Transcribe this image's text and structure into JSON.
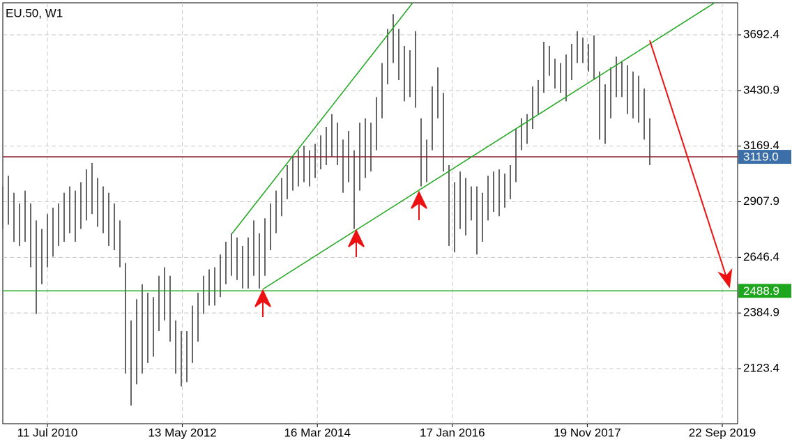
{
  "chart_data": {
    "type": "ohlc",
    "title": "EU.50, W1",
    "bar_color": "#000000",
    "grid": true,
    "ylim": [
      1864.6,
      3856.2
    ],
    "yticks": [
      2123.4,
      2384.9,
      2646.4,
      2907.9,
      3169.4,
      3430.9,
      3692.4
    ],
    "xtick_labels": [
      "11 Jul 2010",
      "13 May 2012",
      "16 Mar 2014",
      "17 Jan 2016",
      "19 Nov 2017",
      "22 Sep 2019"
    ],
    "high": [
      2980,
      3030,
      2950,
      2900,
      2960,
      2900,
      2820,
      2780,
      2850,
      2880,
      2900,
      2950,
      2980,
      2960,
      3000,
      3060,
      3090,
      3020,
      2980,
      2950,
      2900,
      2820,
      2620,
      2350,
      2450,
      2520,
      2480,
      2460,
      2560,
      2600,
      2560,
      2350,
      2300,
      2300,
      2420,
      2480,
      2560,
      2590,
      2600,
      2660,
      2720,
      2760,
      2740,
      2700,
      2740,
      2820,
      2760,
      2830,
      2900,
      2960,
      3020,
      3080,
      3120,
      3150,
      3170,
      3150,
      3180,
      3220,
      3260,
      3320,
      3280,
      3200,
      3240,
      3150,
      3280,
      3300,
      3280,
      3400,
      3560,
      3720,
      3790,
      3720,
      3640,
      3620,
      3710,
      3300,
      3200,
      3450,
      3540,
      3420,
      3080,
      3000,
      3050,
      3020,
      2980,
      2980,
      2950,
      3030,
      3050,
      3060,
      3040,
      3080,
      3250,
      3300,
      3320,
      3450,
      3480,
      3660,
      3640,
      3580,
      3560,
      3600,
      3650,
      3710,
      3680,
      3650,
      3690,
      3520,
      3460,
      3540,
      3590,
      3570,
      3550,
      3520,
      3500,
      3440,
      3300
    ],
    "low": [
      2780,
      2800,
      2720,
      2700,
      2720,
      2600,
      2380,
      2520,
      2600,
      2650,
      2700,
      2720,
      2760,
      2720,
      2780,
      2820,
      2850,
      2790,
      2760,
      2700,
      2680,
      2600,
      2100,
      1950,
      2050,
      2100,
      2150,
      2180,
      2300,
      2350,
      2250,
      2100,
      2040,
      2060,
      2150,
      2250,
      2380,
      2420,
      2420,
      2460,
      2520,
      2560,
      2540,
      2500,
      2500,
      2560,
      2500,
      2560,
      2680,
      2760,
      2840,
      2920,
      2960,
      2980,
      3000,
      2980,
      3020,
      3060,
      3080,
      3120,
      3080,
      2950,
      3000,
      2780,
      2960,
      3020,
      3050,
      3150,
      3300,
      3460,
      3560,
      3480,
      3380,
      3400,
      3350,
      2980,
      3000,
      3150,
      3300,
      3050,
      2700,
      2670,
      2780,
      2750,
      2820,
      2660,
      2720,
      2820,
      2860,
      2840,
      2880,
      2920,
      3000,
      3150,
      3180,
      3250,
      3320,
      3420,
      3500,
      3440,
      3420,
      3380,
      3480,
      3560,
      3560,
      3520,
      3480,
      3200,
      3180,
      3300,
      3400,
      3400,
      3320,
      3300,
      3280,
      3200,
      3080
    ],
    "levels": [
      {
        "value": 3119.0,
        "label": "3119.0",
        "color": "#8b1a2b",
        "tag_color": "#3c6fa8"
      },
      {
        "value": 2488.9,
        "label": "2488.9",
        "color": "#1fa61f",
        "tag_color": "#1fa61f"
      }
    ]
  }
}
